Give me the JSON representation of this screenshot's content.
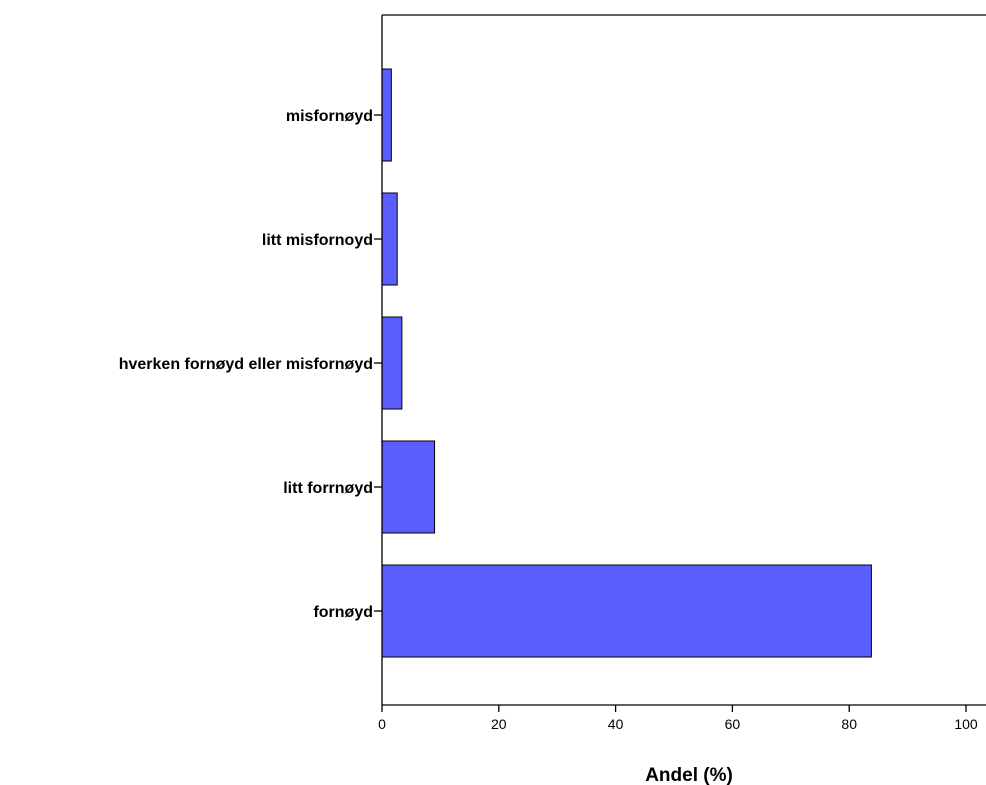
{
  "chart_data": {
    "type": "bar",
    "orientation": "horizontal",
    "categories": [
      "misfornøyd",
      "litt misfornoyd",
      "hverken fornøyd eller misfornøyd",
      "litt forrnøyd",
      "fornøyd"
    ],
    "values": [
      1.6,
      2.6,
      3.4,
      9.0,
      83.8
    ],
    "xlabel": "Andel (%)",
    "ylabel": "",
    "xlim": [
      0,
      100
    ],
    "xticks": [
      "0",
      "20",
      "40",
      "60",
      "80",
      "100"
    ],
    "grid": false,
    "bar_color": "#5a5eff"
  }
}
